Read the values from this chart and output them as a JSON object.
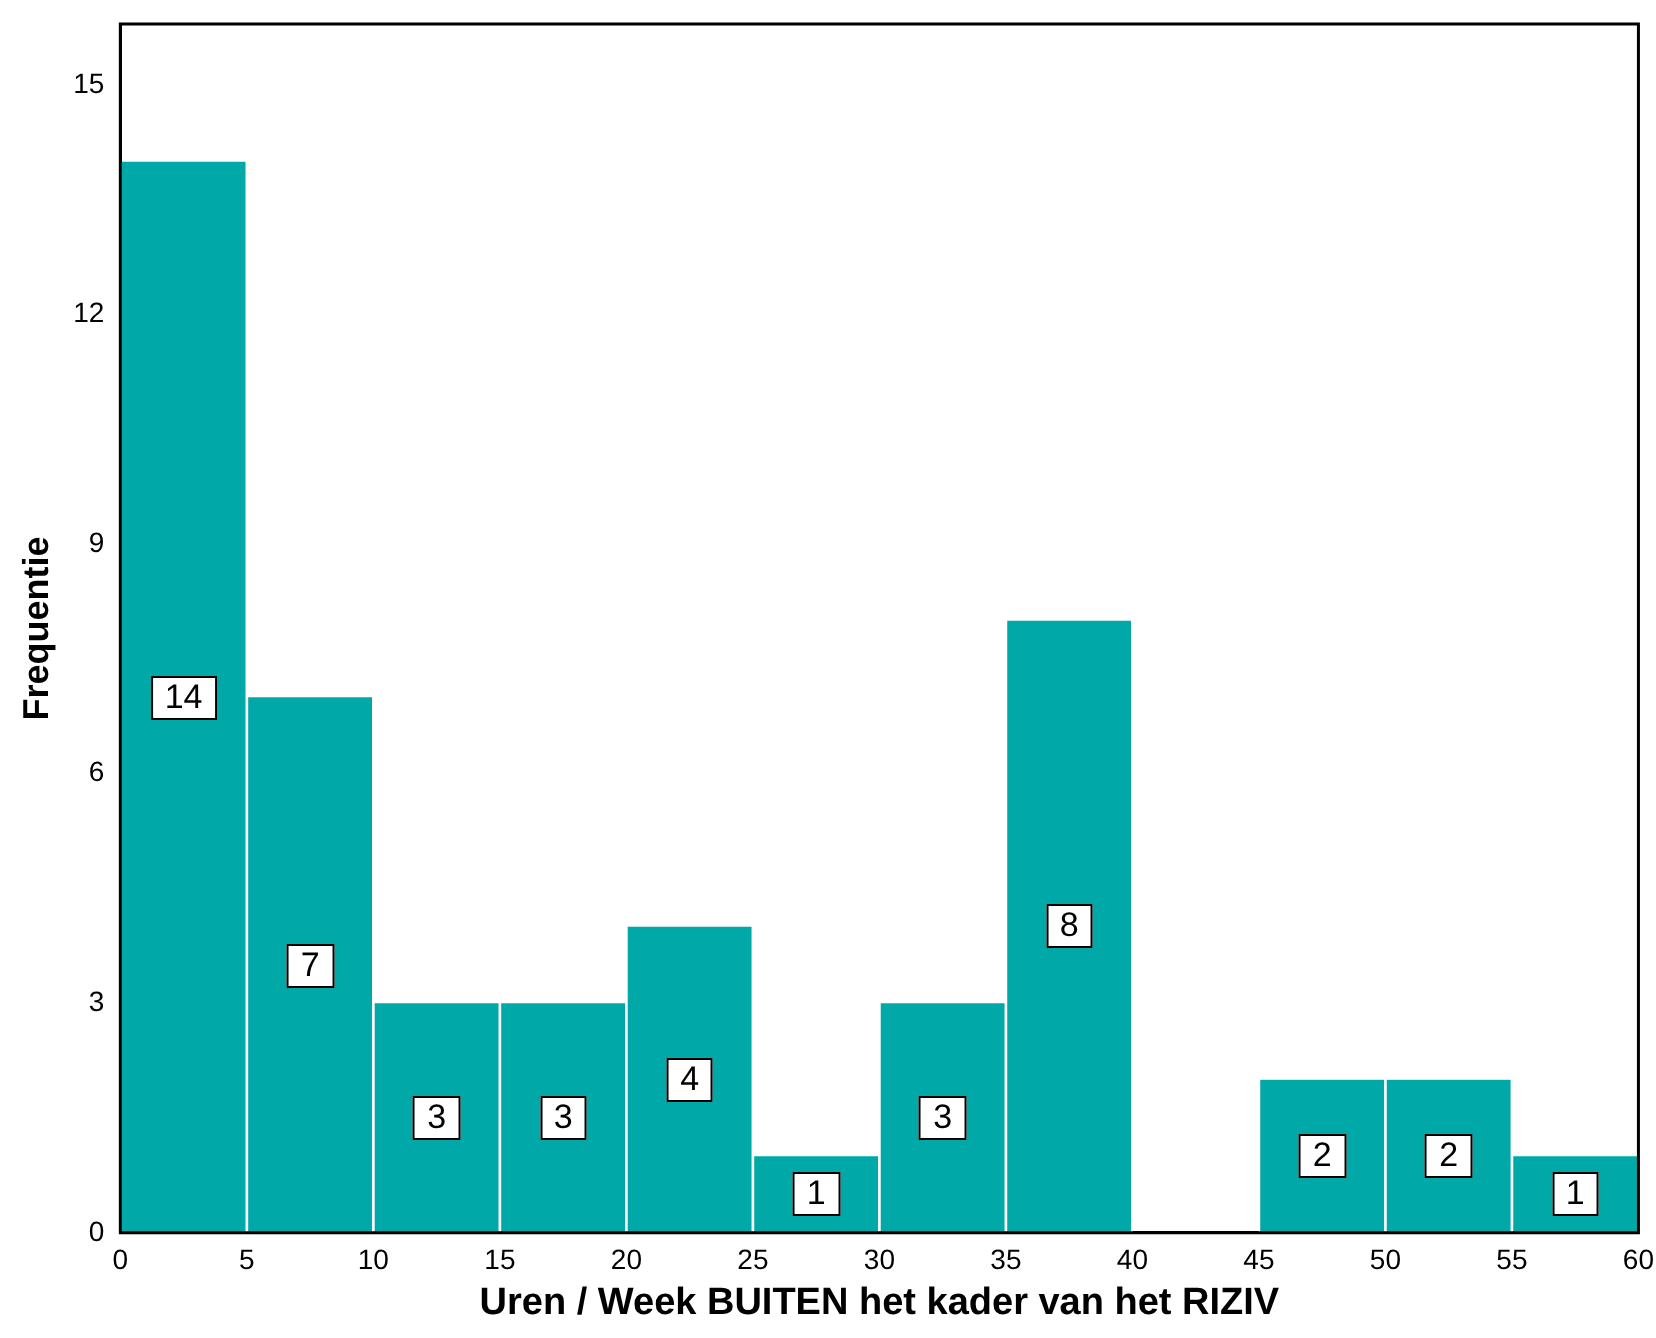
{
  "chart_data": {
    "type": "histogram",
    "xlabel": "Uren / Week BUITEN het kader van het RIZIV",
    "ylabel": "Frequentie",
    "bins": [
      0,
      5,
      10,
      15,
      20,
      25,
      30,
      35,
      40,
      45,
      50,
      55,
      60
    ],
    "values": [
      14,
      7,
      3,
      3,
      4,
      1,
      3,
      8,
      0,
      2,
      2,
      1
    ],
    "value_labels": [
      "14",
      "7",
      "3",
      "3",
      "4",
      "1",
      "3",
      "8",
      null,
      "2",
      "2",
      "1"
    ],
    "color": "#00a8a8",
    "xlim": [
      0,
      60
    ],
    "xticks": [
      0,
      5,
      10,
      15,
      20,
      25,
      30,
      35,
      40,
      45,
      50,
      55,
      60
    ],
    "ylim": [
      0,
      15.8
    ],
    "yticks": [
      0,
      3,
      6,
      9,
      12,
      15
    ],
    "grid": false,
    "legend": false
  }
}
